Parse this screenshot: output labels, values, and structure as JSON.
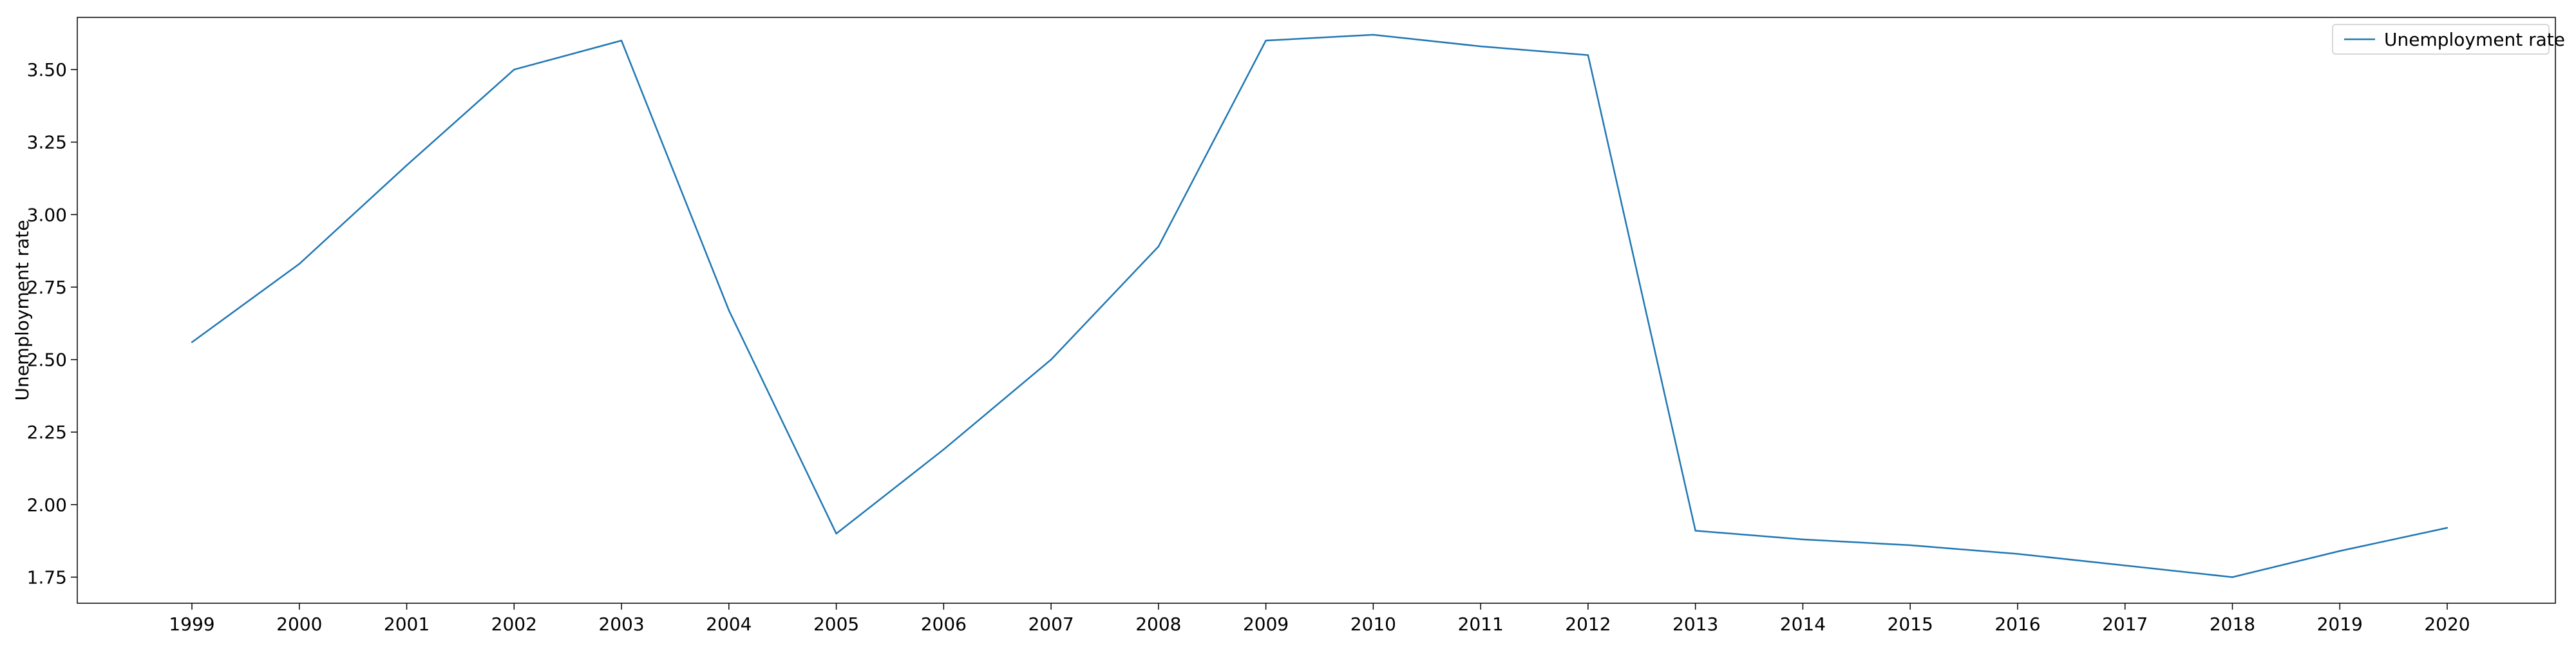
{
  "chart_data": {
    "type": "line",
    "title": "",
    "xlabel": "",
    "ylabel": "Unemployment rate",
    "categories": [
      "1999",
      "2000",
      "2001",
      "2002",
      "2003",
      "2004",
      "2005",
      "2006",
      "2007",
      "2008",
      "2009",
      "2010",
      "2011",
      "2012",
      "2013",
      "2014",
      "2015",
      "2016",
      "2017",
      "2018",
      "2019",
      "2020"
    ],
    "series": [
      {
        "name": "Unemployment rate",
        "color": "#1f77b4",
        "values": [
          2.56,
          2.83,
          3.17,
          3.5,
          3.6,
          2.67,
          1.9,
          2.19,
          2.5,
          2.89,
          3.6,
          3.62,
          3.58,
          3.55,
          1.91,
          1.88,
          1.86,
          1.83,
          1.79,
          1.75,
          1.84,
          1.92
        ]
      }
    ],
    "ylim": [
      1.66,
      3.68
    ],
    "yticks": [
      "1.75",
      "2.00",
      "2.25",
      "2.50",
      "2.75",
      "3.00",
      "3.25",
      "3.50"
    ],
    "grid": false,
    "legend_position": "top-right"
  }
}
